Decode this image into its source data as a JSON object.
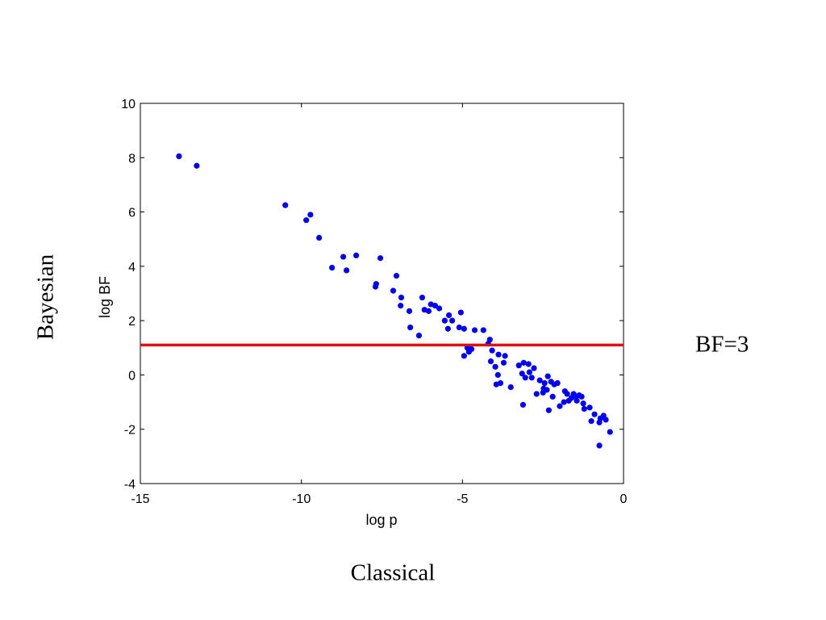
{
  "slide": {
    "left_label": "Bayesian",
    "bottom_label": "Classical",
    "threshold_label": "BF=3"
  },
  "chart_data": {
    "type": "scatter",
    "xlabel": "log p",
    "ylabel": "log BF",
    "xlim": [
      -15,
      0
    ],
    "ylim": [
      -4,
      10
    ],
    "xticks": [
      -15,
      -10,
      -5,
      0
    ],
    "yticks": [
      -4,
      -2,
      0,
      2,
      4,
      6,
      8,
      10
    ],
    "marker_color": "#0000ee",
    "reference_line": {
      "y": 1.1,
      "color": "#dd1111"
    },
    "points": [
      [
        -13.8,
        8.05
      ],
      [
        -13.25,
        7.7
      ],
      [
        -10.5,
        6.25
      ],
      [
        -9.85,
        5.7
      ],
      [
        -9.72,
        5.9
      ],
      [
        -9.45,
        5.05
      ],
      [
        -9.05,
        3.95
      ],
      [
        -8.7,
        4.35
      ],
      [
        -8.6,
        3.85
      ],
      [
        -8.3,
        4.4
      ],
      [
        -7.7,
        3.25
      ],
      [
        -7.68,
        3.35
      ],
      [
        -7.55,
        4.3
      ],
      [
        -7.15,
        3.1
      ],
      [
        -7.05,
        3.65
      ],
      [
        -6.92,
        2.55
      ],
      [
        -6.9,
        2.85
      ],
      [
        -6.65,
        2.35
      ],
      [
        -6.62,
        1.75
      ],
      [
        -6.35,
        1.45
      ],
      [
        -6.25,
        2.85
      ],
      [
        -6.18,
        2.4
      ],
      [
        -6.05,
        2.35
      ],
      [
        -5.98,
        2.6
      ],
      [
        -5.85,
        2.55
      ],
      [
        -5.72,
        2.45
      ],
      [
        -5.55,
        2.0
      ],
      [
        -5.45,
        1.7
      ],
      [
        -5.42,
        2.2
      ],
      [
        -5.32,
        2.0
      ],
      [
        -5.1,
        1.75
      ],
      [
        -5.05,
        2.3
      ],
      [
        -4.95,
        1.7
      ],
      [
        -4.95,
        0.7
      ],
      [
        -4.85,
        1.0
      ],
      [
        -4.8,
        0.85
      ],
      [
        -4.72,
        0.95
      ],
      [
        -4.62,
        1.65
      ],
      [
        -4.35,
        1.65
      ],
      [
        -4.2,
        1.15
      ],
      [
        -4.15,
        1.3
      ],
      [
        -4.12,
        0.5
      ],
      [
        -4.08,
        0.9
      ],
      [
        -3.98,
        0.3
      ],
      [
        -3.95,
        -0.35
      ],
      [
        -3.9,
        0.0
      ],
      [
        -3.88,
        0.75
      ],
      [
        -3.82,
        -0.3
      ],
      [
        -3.72,
        0.45
      ],
      [
        -3.68,
        0.7
      ],
      [
        -3.5,
        -0.45
      ],
      [
        -3.25,
        0.35
      ],
      [
        -3.15,
        0.05
      ],
      [
        -3.12,
        -1.1
      ],
      [
        -3.1,
        0.45
      ],
      [
        -3.05,
        -0.1
      ],
      [
        -2.95,
        0.4
      ],
      [
        -2.92,
        0.1
      ],
      [
        -2.85,
        -0.1
      ],
      [
        -2.78,
        0.25
      ],
      [
        -2.7,
        -0.7
      ],
      [
        -2.6,
        -0.2
      ],
      [
        -2.5,
        -0.65
      ],
      [
        -2.48,
        -0.5
      ],
      [
        -2.45,
        -0.3
      ],
      [
        -2.38,
        -0.55
      ],
      [
        -2.35,
        -0.05
      ],
      [
        -2.32,
        -1.3
      ],
      [
        -2.25,
        -0.25
      ],
      [
        -2.2,
        -0.8
      ],
      [
        -2.15,
        -0.35
      ],
      [
        -2.05,
        -0.3
      ],
      [
        -1.98,
        -1.15
      ],
      [
        -1.85,
        -1.0
      ],
      [
        -1.82,
        -0.6
      ],
      [
        -1.75,
        -0.7
      ],
      [
        -1.7,
        -0.95
      ],
      [
        -1.62,
        -0.85
      ],
      [
        -1.55,
        -0.7
      ],
      [
        -1.5,
        -0.8
      ],
      [
        -1.45,
        -0.95
      ],
      [
        -1.38,
        -0.75
      ],
      [
        -1.3,
        -0.8
      ],
      [
        -1.25,
        -1.05
      ],
      [
        -1.22,
        -1.25
      ],
      [
        -1.05,
        -1.2
      ],
      [
        -1.0,
        -1.7
      ],
      [
        -0.9,
        -1.45
      ],
      [
        -0.75,
        -1.75
      ],
      [
        -0.72,
        -1.6
      ],
      [
        -0.62,
        -1.5
      ],
      [
        -0.55,
        -1.65
      ],
      [
        -0.42,
        -2.1
      ],
      [
        -0.75,
        -2.6
      ]
    ]
  }
}
